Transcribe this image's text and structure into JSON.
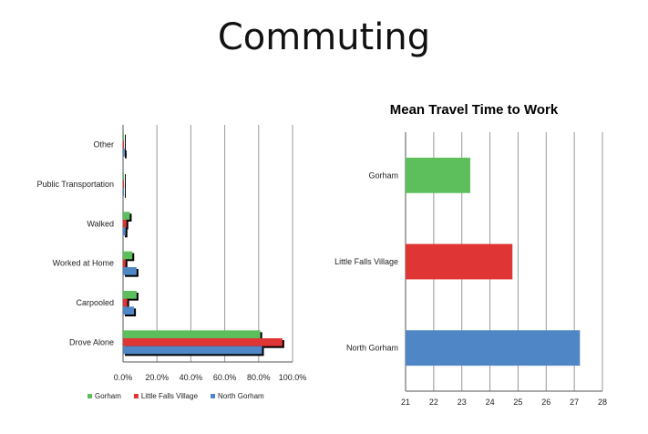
{
  "slide": {
    "title": "Commuting"
  },
  "colors": {
    "gorham": "#5cbf5c",
    "little_falls": "#e03535",
    "north_gorham": "#4f86c6",
    "grid": "#999999"
  },
  "chart_data": [
    {
      "type": "bar",
      "orientation": "horizontal",
      "title": "",
      "categories": [
        "Other",
        "Public Transportation",
        "Walked",
        "Worked at Home",
        "Carpooled",
        "Drove Alone"
      ],
      "series": [
        {
          "name": "Gorham",
          "values": [
            0.5,
            0.5,
            4.0,
            5.5,
            8.0,
            81.0
          ]
        },
        {
          "name": "Little Falls Village",
          "values": [
            0.0,
            0.0,
            2.0,
            1.5,
            2.5,
            94.0
          ]
        },
        {
          "name": "North Gorham",
          "values": [
            1.0,
            0.5,
            1.5,
            8.0,
            6.5,
            82.0
          ]
        }
      ],
      "xlim": [
        0,
        100
      ],
      "x_ticks": [
        "0.0%",
        "20.0%",
        "40.0%",
        "60.0%",
        "80.0%",
        "100.0%"
      ],
      "legend": "bottom",
      "grid": true
    },
    {
      "type": "bar",
      "orientation": "horizontal",
      "title": "Mean Travel Time to Work",
      "categories": [
        "Gorham",
        "Little Falls Village",
        "North Gorham"
      ],
      "values": [
        23.3,
        24.8,
        27.2
      ],
      "xlim": [
        21,
        28
      ],
      "x_ticks": [
        "21",
        "22",
        "23",
        "24",
        "25",
        "26",
        "27",
        "28"
      ],
      "grid": true
    }
  ]
}
